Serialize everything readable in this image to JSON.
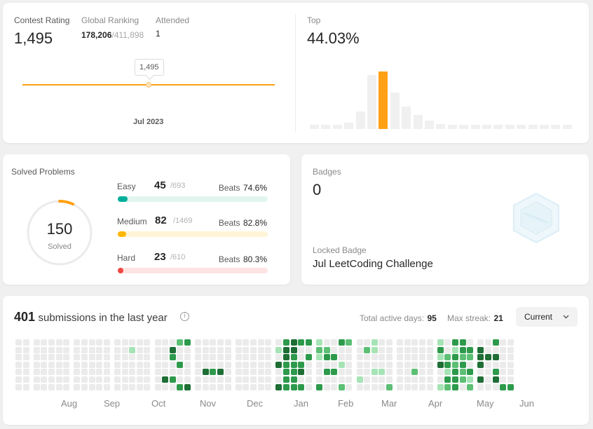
{
  "rating": {
    "contest_rating_label": "Contest Rating",
    "contest_rating_value": "1,495",
    "global_ranking_label": "Global Ranking",
    "global_rank": "178,206",
    "global_total": "/411,898",
    "attended_label": "Attended",
    "attended_value": "1",
    "tooltip_value": "1,495",
    "date_label": "Jul 2023",
    "line_color": "#ffa116",
    "top_label": "Top",
    "top_value": "44.03%",
    "histogram": [
      0.06,
      0.06,
      0.06,
      0.09,
      0.25,
      0.77,
      0.82,
      0.52,
      0.32,
      0.2,
      0.12,
      0.07,
      0.06,
      0.06,
      0.06,
      0.06,
      0.06,
      0.06,
      0.06,
      0.06,
      0.06,
      0.06,
      0.06
    ],
    "highlight_index": 6,
    "highlight_color": "#ffa116",
    "bar_color": "#f0f0f0"
  },
  "solved": {
    "title": "Solved Problems",
    "total": "150",
    "total_label": "Solved",
    "ring_color": "#ffa116",
    "difficulties": [
      {
        "name": "Easy",
        "count": "45",
        "total": "/693",
        "beats_label": "Beats",
        "beats": "74.6%",
        "fraction": 0.065,
        "color": "#00af9b",
        "track": "#e2f5ef"
      },
      {
        "name": "Medium",
        "count": "82",
        "total": "/1469",
        "beats_label": "Beats",
        "beats": "82.8%",
        "fraction": 0.056,
        "color": "#ffb800",
        "track": "#fff4d6"
      },
      {
        "name": "Hard",
        "count": "23",
        "total": "/610",
        "beats_label": "Beats",
        "beats": "80.3%",
        "fraction": 0.038,
        "color": "#ef4743",
        "track": "#fde3e2"
      }
    ]
  },
  "badges": {
    "title": "Badges",
    "count": "0",
    "locked_label": "Locked Badge",
    "locked_name": "Jul LeetCoding Challenge",
    "badge_icon": "hexagon-badge-icon"
  },
  "calendar": {
    "count": "401",
    "text": "submissions in the last year",
    "info_icon": "info-icon",
    "active_days_label": "Total active days:",
    "active_days": "95",
    "max_streak_label": "Max streak:",
    "max_streak": "21",
    "dropdown_value": "Current",
    "months": [
      "Aug",
      "Sep",
      "Oct",
      "Nov",
      "Dec",
      "Jan",
      "Feb",
      "Mar",
      "Apr",
      "May",
      "Jun"
    ],
    "colors": [
      "#ebebeb",
      "#a6e3b5",
      "#5cbf74",
      "#2d9a4b",
      "#1e6e35"
    ],
    "blocks": [
      [
        "00000000000000000000000000000000000",
        2
      ],
      [
        "000000000000000000000000000000000000",
        5
      ],
      [
        "000000000000000000000000000000000000",
        5
      ],
      [
        "000000000000000100000000000000000000",
        5
      ],
      [
        "000000000000400430030200300330000040",
        5
      ],
      [
        "000000000004000000300000040000000000",
        5
      ],
      [
        "000000000000000000000000000000000000",
        5
      ],
      [
        "010400434433334433333300340330300004",
        5
      ],
      [
        "121000302303000030300300100220000000",
        5
      ],
      [
        "000001002000001100100000010000000020",
        5
      ],
      [
        "000000000000000000200000000000000000",
        5
      ],
      [
        "131400100231323132333332322003203120",
        5
      ],
      [
        "044404000400003040340000000300000030",
        5
      ]
    ]
  }
}
